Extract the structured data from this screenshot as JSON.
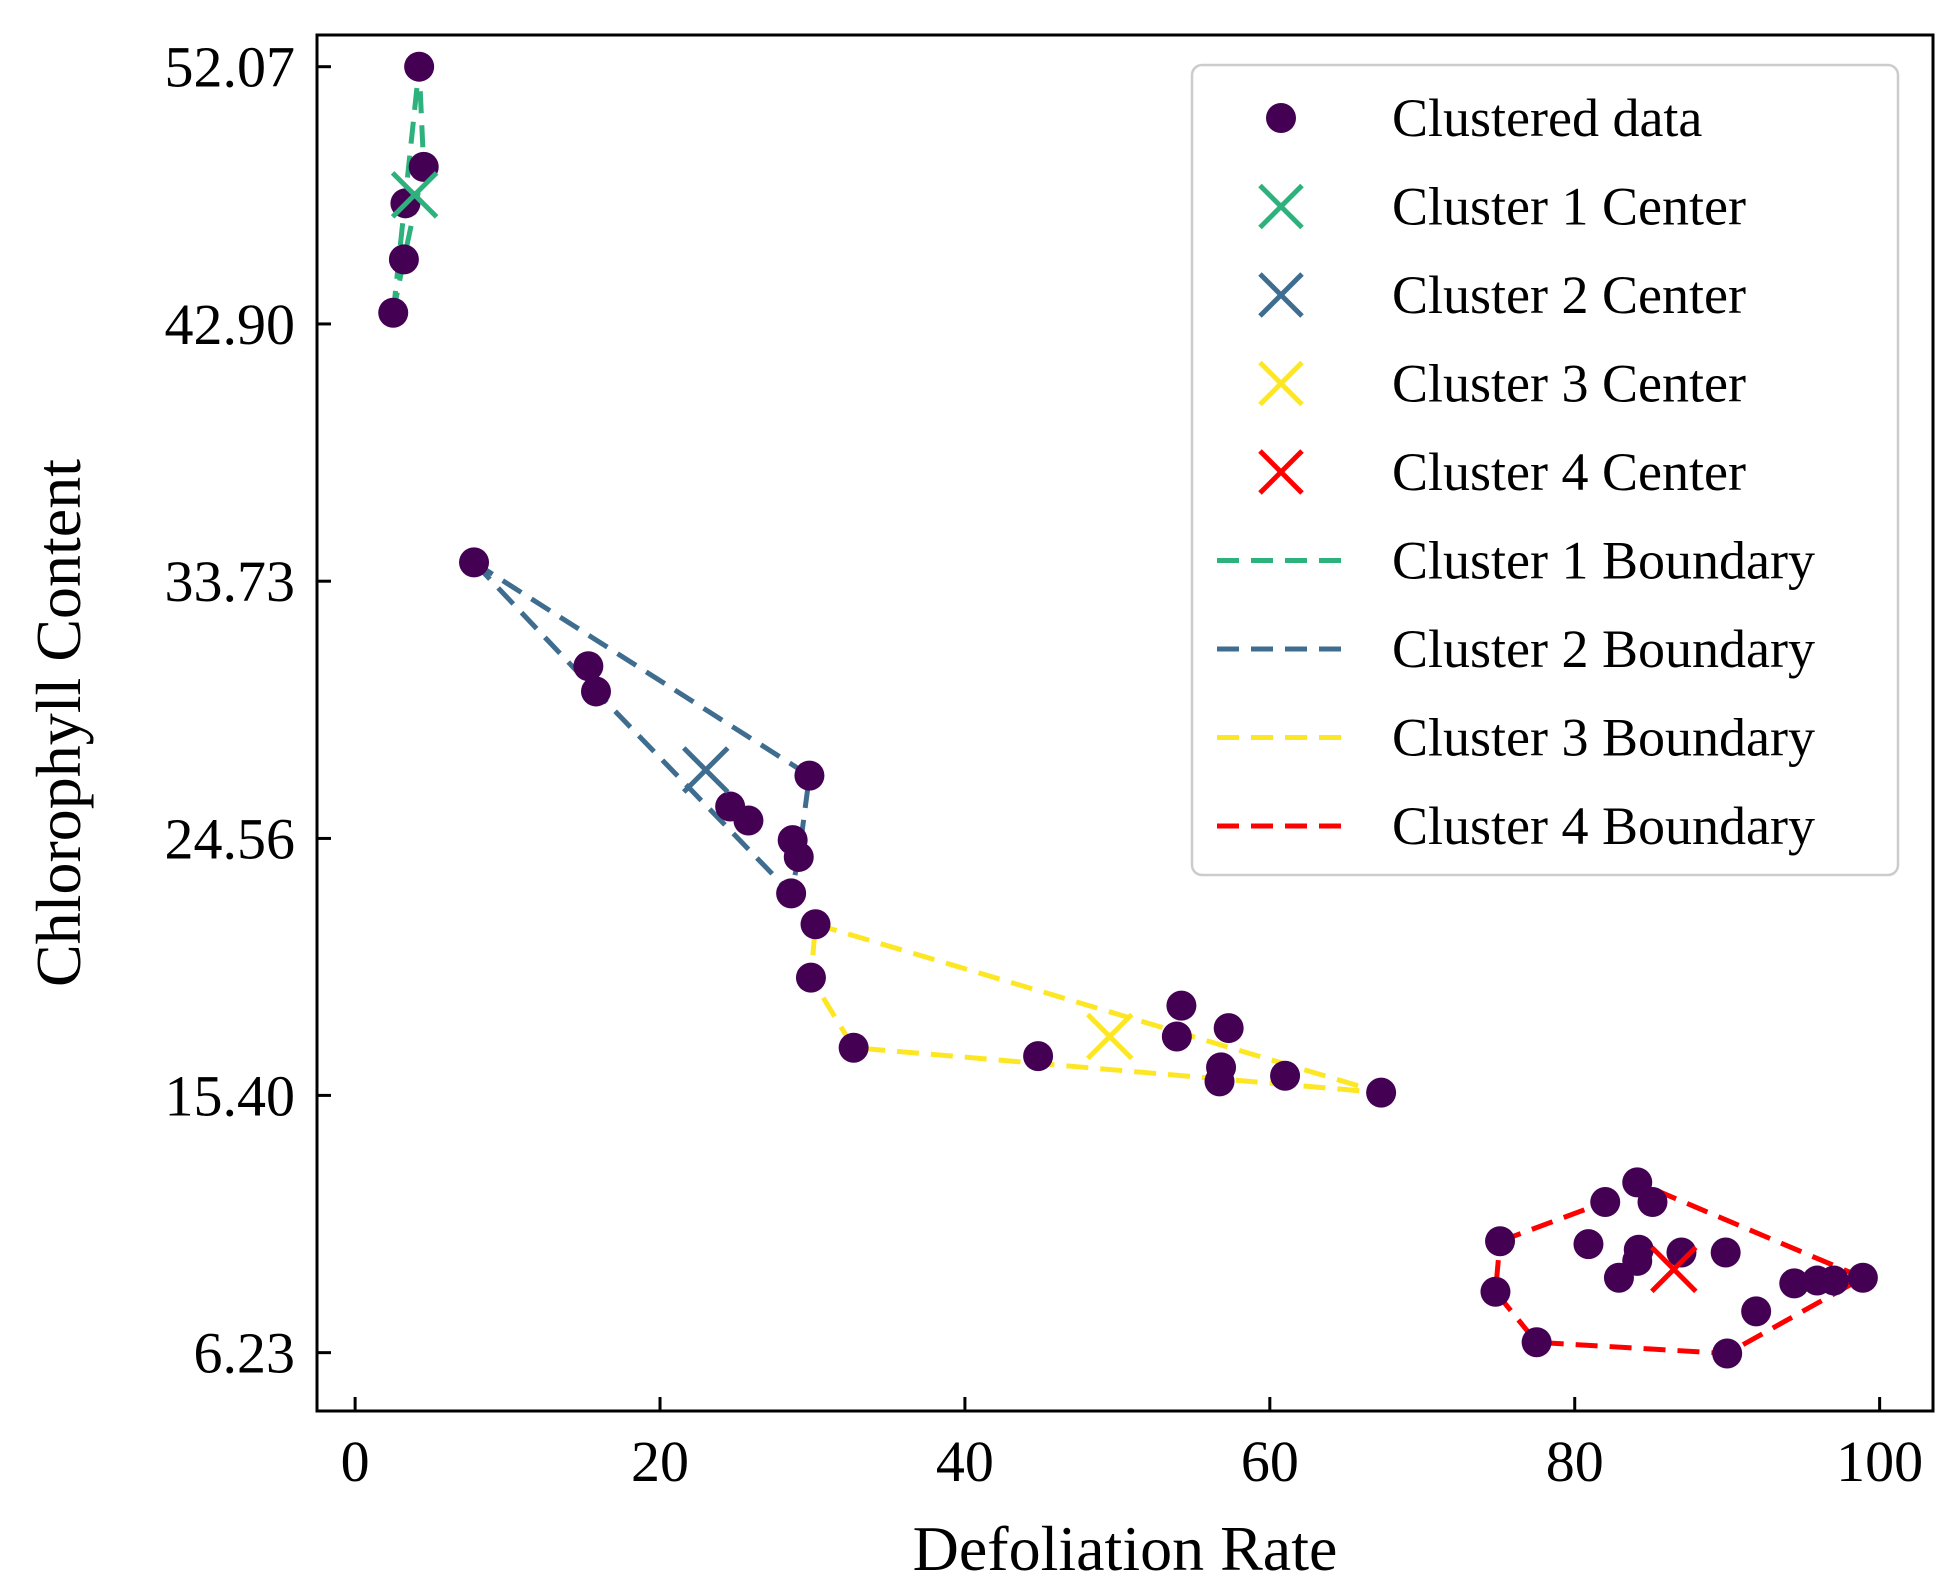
{
  "chart_data": {
    "type": "scatter",
    "title": "",
    "xlabel": "Defoliation Rate",
    "ylabel": "Chlorophyll Content",
    "xlim": [
      -2.5,
      103.5
    ],
    "ylim": [
      4.15,
      53.2
    ],
    "xticks": [
      0,
      20,
      40,
      60,
      80,
      100
    ],
    "xtick_labels": [
      "0",
      "20",
      "40",
      "60",
      "80",
      "100"
    ],
    "yticks": [
      6.23,
      15.4,
      24.56,
      33.73,
      42.9,
      52.07
    ],
    "ytick_labels": [
      "6.23",
      "15.40",
      "24.56",
      "33.73",
      "42.90",
      "52.07"
    ],
    "grid": false,
    "legend_position": "top-right",
    "points": {
      "name": "Clustered data",
      "color": "#440154",
      "data": [
        [
          4.2,
          52.07
        ],
        [
          4.5,
          48.5
        ],
        [
          3.3,
          47.2
        ],
        [
          3.2,
          45.2
        ],
        [
          2.5,
          43.3
        ],
        [
          7.8,
          34.4
        ],
        [
          15.3,
          30.7
        ],
        [
          15.8,
          29.8
        ],
        [
          29.8,
          26.8
        ],
        [
          24.6,
          25.7
        ],
        [
          25.8,
          25.2
        ],
        [
          28.7,
          24.5
        ],
        [
          29.1,
          23.9
        ],
        [
          28.6,
          22.6
        ],
        [
          30.2,
          21.5
        ],
        [
          29.9,
          19.6
        ],
        [
          32.7,
          17.1
        ],
        [
          44.8,
          16.8
        ],
        [
          54.2,
          18.6
        ],
        [
          57.3,
          17.8
        ],
        [
          53.9,
          17.5
        ],
        [
          56.8,
          16.4
        ],
        [
          56.7,
          15.9
        ],
        [
          61.0,
          16.1
        ],
        [
          67.3,
          15.5
        ],
        [
          84.1,
          12.3
        ],
        [
          82.0,
          11.6
        ],
        [
          85.1,
          11.6
        ],
        [
          75.1,
          10.2
        ],
        [
          80.9,
          10.1
        ],
        [
          84.2,
          9.9
        ],
        [
          84.1,
          9.5
        ],
        [
          87.0,
          9.8
        ],
        [
          89.9,
          9.8
        ],
        [
          82.9,
          8.9
        ],
        [
          94.4,
          8.7
        ],
        [
          95.9,
          8.8
        ],
        [
          97.0,
          8.8
        ],
        [
          98.9,
          8.9
        ],
        [
          91.9,
          7.7
        ],
        [
          74.8,
          8.4
        ],
        [
          77.5,
          6.6
        ],
        [
          90.0,
          6.2
        ]
      ]
    },
    "centers": [
      {
        "name": "Cluster 1 Center",
        "color": "#2db27d",
        "x": 3.9,
        "y": 47.5
      },
      {
        "name": "Cluster 2 Center",
        "color": "#3e6d8f",
        "x": 23.0,
        "y": 27.0
      },
      {
        "name": "Cluster 3 Center",
        "color": "#fde725",
        "x": 49.5,
        "y": 17.5
      },
      {
        "name": "Cluster 4 Center",
        "color": "#ff0000",
        "x": 86.5,
        "y": 9.2
      }
    ],
    "boundaries": [
      {
        "name": "Cluster 1 Boundary",
        "color": "#2db27d",
        "polygon": [
          [
            2.5,
            43.3
          ],
          [
            4.2,
            52.07
          ],
          [
            4.5,
            48.5
          ],
          [
            3.2,
            45.2
          ]
        ]
      },
      {
        "name": "Cluster 2 Boundary",
        "color": "#3e6d8f",
        "polygon": [
          [
            7.8,
            34.4
          ],
          [
            29.8,
            26.8
          ],
          [
            29.1,
            23.9
          ],
          [
            28.6,
            22.6
          ],
          [
            15.8,
            29.8
          ]
        ]
      },
      {
        "name": "Cluster 3 Boundary",
        "color": "#fde725",
        "polygon": [
          [
            30.2,
            21.5
          ],
          [
            67.3,
            15.5
          ],
          [
            32.7,
            17.1
          ],
          [
            29.9,
            19.6
          ]
        ]
      },
      {
        "name": "Cluster 4 Boundary",
        "color": "#ff0000",
        "polygon": [
          [
            75.1,
            10.2
          ],
          [
            82.0,
            11.6
          ],
          [
            84.1,
            12.3
          ],
          [
            98.9,
            8.9
          ],
          [
            90.0,
            6.2
          ],
          [
            77.5,
            6.6
          ],
          [
            74.8,
            8.4
          ]
        ]
      }
    ],
    "legend": [
      {
        "label": "Clustered data",
        "kind": "point",
        "color": "#440154"
      },
      {
        "label": "Cluster 1 Center",
        "kind": "x",
        "color": "#2db27d"
      },
      {
        "label": "Cluster 2 Center",
        "kind": "x",
        "color": "#3e6d8f"
      },
      {
        "label": "Cluster 3 Center",
        "kind": "x",
        "color": "#fde725"
      },
      {
        "label": "Cluster 4 Center",
        "kind": "x",
        "color": "#ff0000"
      },
      {
        "label": "Cluster 1 Boundary",
        "kind": "dash",
        "color": "#2db27d"
      },
      {
        "label": "Cluster 2 Boundary",
        "kind": "dash",
        "color": "#3e6d8f"
      },
      {
        "label": "Cluster 3 Boundary",
        "kind": "dash",
        "color": "#fde725"
      },
      {
        "label": "Cluster 4 Boundary",
        "kind": "dash",
        "color": "#ff0000"
      }
    ]
  }
}
